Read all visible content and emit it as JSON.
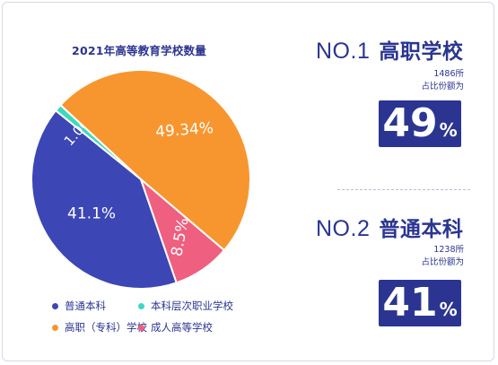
{
  "colors": {
    "navy": "#2b3591",
    "orange": "#f7962f",
    "teal": "#3ed8c0",
    "pink": "#ef5f7f",
    "blue": "#3c46b4"
  },
  "chart_data": {
    "type": "pie",
    "title": "2021年高等教育学校数量",
    "slices": [
      {
        "name": "普通本科",
        "value": 41.1,
        "label": "41.1%",
        "color": "#3c46b4"
      },
      {
        "name": "本科层次职业学校",
        "value": 1.06,
        "label": "1.06%",
        "color": "#3ed8c0"
      },
      {
        "name": "高职（专科）学校",
        "value": 49.34,
        "label": "49.34%",
        "color": "#f7962f"
      },
      {
        "name": "成人高等学校",
        "value": 8.5,
        "label": "8.5%",
        "color": "#ef5f7f"
      }
    ],
    "legend_position": "bottom"
  },
  "ranks": [
    {
      "no": "NO.1",
      "name": "高职学校",
      "count": "1486所",
      "share_label": "占比份额为",
      "percent": "49",
      "percent_sign": "%"
    },
    {
      "no": "NO.2",
      "name": "普通本科",
      "count": "1238所",
      "share_label": "占比份额为",
      "percent": "41",
      "percent_sign": "%"
    }
  ]
}
